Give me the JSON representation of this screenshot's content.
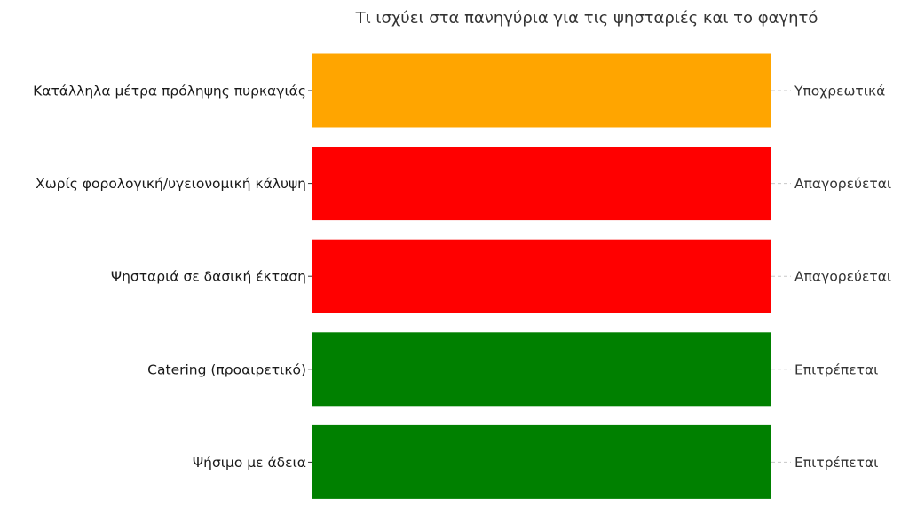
{
  "chart_data": {
    "type": "bar",
    "orientation": "horizontal",
    "title": "Τι ισχύει στα πανηγύρια για τις ψησταριές και το φαγητό",
    "xlabel": "",
    "ylabel": "",
    "grid": true,
    "legend": "none",
    "categories": [
      "Κατάλληλα μέτρα πρόληψης πυρκαγιάς",
      "Χωρίς φορολογική/υγειονομική κάλυψη",
      "Ψησταριά σε δασική έκταση",
      "Catering (προαιρετικό)",
      "Ψήσιμο με άδεια"
    ],
    "values": [
      1,
      1,
      1,
      1,
      1
    ],
    "status_labels": [
      "Υποχρεωτικά",
      "Απαγορεύεται",
      "Απαγορεύεται",
      "Επιτρέπεται",
      "Επιτρέπεται"
    ],
    "colors": [
      "#FFA500",
      "#FF0000",
      "#FF0000",
      "#008000",
      "#008000"
    ],
    "xlim": [
      0,
      1
    ]
  }
}
